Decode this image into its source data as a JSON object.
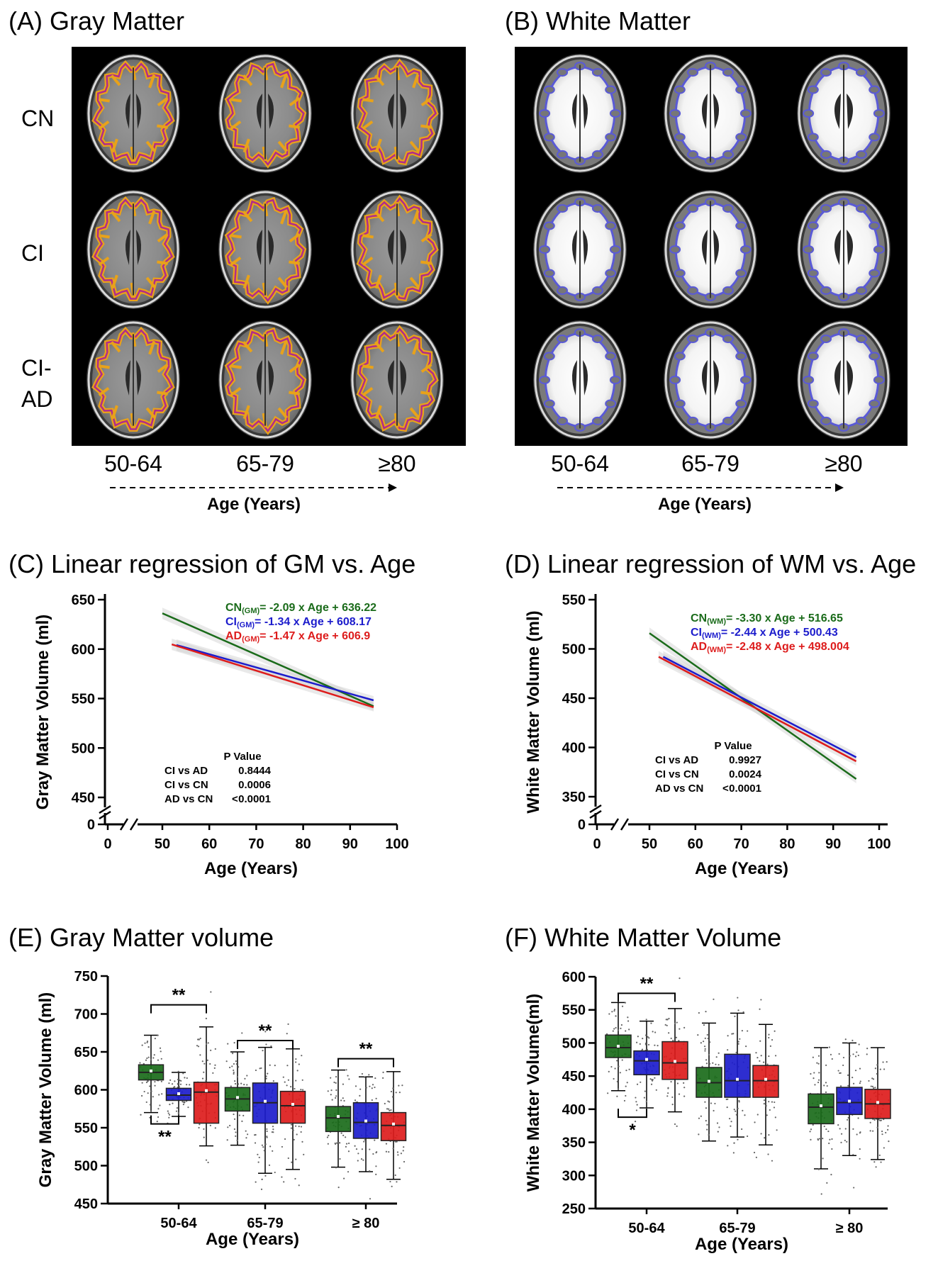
{
  "colors": {
    "cn": "#1a6b1a",
    "ci": "#1c1ccc",
    "ad": "#dd1c1c",
    "band": "#cfcfcf",
    "gm_ring": "#e8a21a",
    "gm_inner": "#b02c8a",
    "wm_ring": "#5a5ad6"
  },
  "icons": [
    "brain-mri-slice-image",
    "dashed-arrow-icon"
  ],
  "panelA": {
    "title": "(A) Gray Matter",
    "rows": [
      "CN",
      "CI",
      "CI-\nAD"
    ],
    "ages": [
      "50-64",
      "65-79",
      "≥80"
    ],
    "axis_label": "Age (Years)"
  },
  "panelB": {
    "title": "(B) White Matter",
    "ages": [
      "50-64",
      "65-79",
      "≥80"
    ],
    "axis_label": "Age (Years)"
  },
  "chart_data": [
    {
      "id": "C",
      "type": "line",
      "title": "(C) Linear regression of GM vs. Age",
      "xlabel": "Age  (Years)",
      "ylabel": "Gray Matter Volume (ml)",
      "xlim": [
        0,
        100
      ],
      "xticks": [
        0,
        10,
        20,
        30,
        40,
        50,
        60,
        70,
        80,
        90,
        100
      ],
      "ylim": [
        450,
        650
      ],
      "yticks": [
        450,
        500,
        550,
        600,
        650
      ],
      "ybreak": 0,
      "series": [
        {
          "name": "CN",
          "label": "CN",
          "sub": "(GM)",
          "eq": "= -2.09 x Age + 636.22",
          "x": [
            50,
            95
          ],
          "y": [
            636.22,
            542.2
          ],
          "color": "cn"
        },
        {
          "name": "CI",
          "label": "CI",
          "sub": "(GM)",
          "eq": "= -1.34 x Age + 608.17",
          "x": [
            53,
            95
          ],
          "y": [
            604.1,
            548.2
          ],
          "color": "ci"
        },
        {
          "name": "AD",
          "label": "AD",
          "sub": "(GM)",
          "eq": "= -1.47 x Age + 606.9",
          "x": [
            52,
            95
          ],
          "y": [
            604.8,
            541.2
          ],
          "color": "ad"
        }
      ],
      "pvalues": {
        "header": "P Value",
        "rows": [
          [
            "CI vs AD",
            "",
            "0.8444"
          ],
          [
            "CI vs CN",
            "",
            "0.0006"
          ],
          [
            "AD vs CN",
            "<",
            "0.0001"
          ]
        ]
      }
    },
    {
      "id": "D",
      "type": "line",
      "title": "(D) Linear regression of WM vs. Age",
      "xlabel": "Age  (Years)",
      "ylabel": "White Matter Volume (ml)",
      "xlim": [
        0,
        100
      ],
      "xticks": [
        0,
        10,
        20,
        30,
        40,
        50,
        60,
        70,
        80,
        90,
        100
      ],
      "ylim": [
        350,
        550
      ],
      "yticks": [
        350,
        400,
        450,
        500,
        550
      ],
      "ybreak": 0,
      "series": [
        {
          "name": "CN",
          "label": "CN",
          "sub": "(WM)",
          "eq": "= -3.30 x Age + 516.65",
          "x": [
            50,
            95
          ],
          "y": [
            516.0,
            368.0
          ],
          "color": "cn"
        },
        {
          "name": "CI",
          "label": "CI",
          "sub": "(WM)",
          "eq": "=  -2.44  x Age + 500.43",
          "x": [
            53,
            95
          ],
          "y": [
            492.0,
            390.0
          ],
          "color": "ci"
        },
        {
          "name": "AD",
          "label": "AD",
          "sub": "(WM)",
          "eq": "= -2.48 x Age + 498.004",
          "x": [
            52,
            95
          ],
          "y": [
            492.0,
            386.0
          ],
          "color": "ad"
        }
      ],
      "pvalues": {
        "header": "P Value",
        "rows": [
          [
            "CI vs AD",
            "",
            "0.9927"
          ],
          [
            "CI vs CN",
            "",
            "0.0024"
          ],
          [
            "AD vs CN",
            "<",
            "0.0001"
          ]
        ]
      }
    },
    {
      "id": "E",
      "type": "box",
      "title": "(E) Gray Matter volume",
      "xlabel": "Age (Years)",
      "ylabel": "Gray Matter Volume (ml)",
      "categories": [
        "50-64",
        "65-79",
        "≥ 80"
      ],
      "ylim": [
        450,
        750
      ],
      "yticks": [
        450,
        500,
        550,
        600,
        650,
        700,
        750
      ],
      "series": [
        {
          "name": "CN",
          "color": "cn",
          "boxes": [
            {
              "wl": 570,
              "q1": 613,
              "med": 623,
              "q3": 633,
              "wh": 672
            },
            {
              "wl": 527,
              "q1": 572,
              "med": 588,
              "q3": 603,
              "wh": 650
            },
            {
              "wl": 498,
              "q1": 545,
              "med": 563,
              "q3": 578,
              "wh": 626
            }
          ]
        },
        {
          "name": "CI",
          "color": "ci",
          "boxes": [
            {
              "wl": 565,
              "q1": 586,
              "med": 593,
              "q3": 602,
              "wh": 623
            },
            {
              "wl": 490,
              "q1": 556,
              "med": 583,
              "q3": 609,
              "wh": 656
            },
            {
              "wl": 492,
              "q1": 536,
              "med": 557,
              "q3": 583,
              "wh": 617
            }
          ]
        },
        {
          "name": "AD",
          "color": "ad",
          "boxes": [
            {
              "wl": 526,
              "q1": 556,
              "med": 597,
              "q3": 610,
              "wh": 683
            },
            {
              "wl": 495,
              "q1": 556,
              "med": 579,
              "q3": 598,
              "wh": 654
            },
            {
              "wl": 482,
              "q1": 533,
              "med": 553,
              "q3": 570,
              "wh": 624
            }
          ]
        }
      ],
      "sig": [
        {
          "cat": 0,
          "from": "CN",
          "to": "AD",
          "y": 712,
          "dir": "down",
          "label": "**"
        },
        {
          "cat": 1,
          "from": "CN",
          "to": "AD",
          "y": 665,
          "dir": "down",
          "label": "**"
        },
        {
          "cat": 2,
          "from": "CN",
          "to": "AD",
          "y": 641,
          "dir": "down",
          "label": "**"
        },
        {
          "cat": 0,
          "from": "CN",
          "to": "CI",
          "y": 555,
          "dir": "up",
          "label": "**"
        }
      ]
    },
    {
      "id": "F",
      "type": "box",
      "title": "(F) White Matter Volume",
      "xlabel": "Age (Years)",
      "ylabel": "White Matter Volume(ml)",
      "categories": [
        "50-64",
        "65-79",
        "≥ 80"
      ],
      "ylim": [
        250,
        600
      ],
      "yticks": [
        250,
        300,
        350,
        400,
        450,
        500,
        550,
        600
      ],
      "series": [
        {
          "name": "CN",
          "color": "cn",
          "boxes": [
            {
              "wl": 428,
              "q1": 478,
              "med": 493,
              "q3": 512,
              "wh": 561
            },
            {
              "wl": 352,
              "q1": 418,
              "med": 440,
              "q3": 463,
              "wh": 530
            },
            {
              "wl": 310,
              "q1": 378,
              "med": 403,
              "q3": 423,
              "wh": 493
            }
          ]
        },
        {
          "name": "CI",
          "color": "ci",
          "boxes": [
            {
              "wl": 402,
              "q1": 452,
              "med": 473,
              "q3": 488,
              "wh": 533
            },
            {
              "wl": 358,
              "q1": 418,
              "med": 443,
              "q3": 483,
              "wh": 545
            },
            {
              "wl": 330,
              "q1": 392,
              "med": 410,
              "q3": 433,
              "wh": 500
            }
          ]
        },
        {
          "name": "AD",
          "color": "ad",
          "boxes": [
            {
              "wl": 396,
              "q1": 445,
              "med": 470,
              "q3": 502,
              "wh": 552
            },
            {
              "wl": 346,
              "q1": 418,
              "med": 443,
              "q3": 466,
              "wh": 528
            },
            {
              "wl": 324,
              "q1": 386,
              "med": 408,
              "q3": 430,
              "wh": 493
            }
          ]
        }
      ],
      "sig": [
        {
          "cat": 0,
          "from": "CN",
          "to": "AD",
          "y": 575,
          "dir": "down",
          "label": "**"
        },
        {
          "cat": 0,
          "from": "CN",
          "to": "CI",
          "y": 388,
          "dir": "up",
          "label": "*"
        }
      ]
    }
  ]
}
